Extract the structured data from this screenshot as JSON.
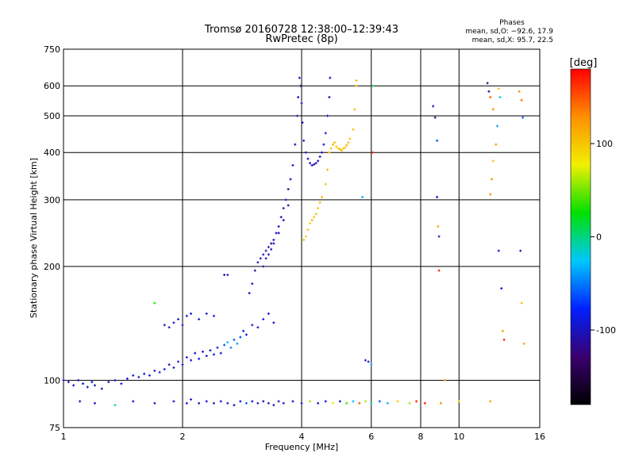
{
  "chart_data": {
    "type": "scatter",
    "title": "Tromsø 20160728 12:38:00–12:39:43",
    "subtitle": "RwPretec (8p)",
    "phase_info": {
      "heading": "Phases",
      "line_o": "mean, sd,O:  −92.6, 17.9",
      "line_x": "mean, sd,X:   95.7, 22.5"
    },
    "xlabel": "Frequency [MHz]",
    "ylabel": "Stationary phase Virtual Height [km]",
    "x_scale": "log",
    "y_scale": "log",
    "xlim": [
      1,
      16
    ],
    "ylim": [
      75,
      750
    ],
    "x_ticks": [
      1,
      2,
      4,
      6,
      8,
      10,
      16
    ],
    "y_ticks": [
      75,
      100,
      200,
      300,
      400,
      500,
      600,
      750
    ],
    "grid_x": [
      2,
      4,
      6,
      8,
      10
    ],
    "grid_y": [
      100,
      200,
      300,
      400,
      500,
      600
    ],
    "grid": true,
    "colorbar": {
      "label": "[deg]",
      "range": [
        -180,
        180
      ],
      "ticks": [
        100,
        0,
        -100
      ],
      "colormap": "rainbow",
      "stops": [
        "#000000",
        "#3a0070",
        "#0020ff",
        "#00c8ff",
        "#00e000",
        "#f0f000",
        "#ff9000",
        "#ff0000"
      ]
    },
    "series": [
      {
        "points": [
          [
            1.0,
            100,
            -95
          ],
          [
            1.03,
            99,
            -100
          ],
          [
            1.06,
            97,
            -90
          ],
          [
            1.09,
            100,
            -105
          ],
          [
            1.12,
            98,
            -95
          ],
          [
            1.15,
            96,
            -100
          ],
          [
            1.18,
            99,
            -88
          ],
          [
            1.2,
            97,
            -95
          ],
          [
            1.25,
            95,
            -110
          ],
          [
            1.3,
            99,
            -92
          ],
          [
            1.35,
            100,
            -100
          ],
          [
            1.4,
            98,
            -90
          ],
          [
            1.45,
            101,
            -95
          ],
          [
            1.5,
            103,
            -85
          ],
          [
            1.55,
            102,
            -100
          ],
          [
            1.6,
            104,
            -95
          ],
          [
            1.65,
            103,
            -90
          ],
          [
            1.7,
            106,
            -100
          ],
          [
            1.75,
            105,
            -95
          ],
          [
            1.8,
            107,
            -88
          ],
          [
            1.85,
            110,
            -95
          ],
          [
            1.9,
            108,
            -100
          ],
          [
            1.95,
            112,
            -92
          ],
          [
            2.0,
            110,
            -95
          ],
          [
            2.05,
            115,
            -90
          ],
          [
            2.1,
            113,
            -100
          ],
          [
            2.15,
            118,
            -95
          ],
          [
            2.2,
            114,
            -85
          ],
          [
            2.25,
            119,
            -90
          ],
          [
            2.3,
            116,
            -95
          ],
          [
            2.35,
            120,
            -100
          ],
          [
            2.4,
            117,
            -88
          ],
          [
            2.45,
            122,
            -95
          ],
          [
            2.5,
            118,
            -90
          ],
          [
            2.55,
            124,
            -60
          ],
          [
            2.6,
            126,
            -30
          ],
          [
            2.65,
            122,
            -50
          ],
          [
            2.7,
            128,
            -60
          ],
          [
            2.75,
            125,
            -40
          ],
          [
            2.8,
            130,
            -70
          ],
          [
            2.85,
            135,
            -80
          ],
          [
            2.9,
            132,
            -90
          ],
          [
            3.0,
            140,
            -95
          ],
          [
            3.1,
            138,
            -100
          ],
          [
            3.2,
            145,
            -90
          ],
          [
            3.3,
            150,
            -95
          ],
          [
            3.4,
            142,
            -100
          ],
          [
            1.8,
            140,
            -100
          ],
          [
            1.85,
            138,
            -95
          ],
          [
            1.9,
            142,
            -90
          ],
          [
            1.95,
            145,
            -100
          ],
          [
            2.0,
            140,
            -95
          ],
          [
            2.05,
            148,
            -100
          ],
          [
            2.1,
            150,
            -95
          ],
          [
            2.2,
            145,
            -90
          ],
          [
            2.3,
            150,
            -100
          ],
          [
            2.4,
            148,
            -95
          ],
          [
            1.7,
            160,
            30
          ],
          [
            2.55,
            190,
            -110
          ],
          [
            2.6,
            190,
            -100
          ]
        ]
      },
      {
        "points": [
          [
            2.95,
            170,
            -100
          ],
          [
            3.0,
            180,
            -95
          ],
          [
            3.05,
            195,
            -110
          ],
          [
            3.1,
            205,
            -100
          ],
          [
            3.15,
            210,
            -95
          ],
          [
            3.2,
            215,
            -105
          ],
          [
            3.25,
            220,
            -100
          ],
          [
            3.3,
            225,
            -95
          ],
          [
            3.35,
            230,
            -110
          ],
          [
            3.4,
            235,
            -100
          ],
          [
            3.45,
            245,
            -95
          ],
          [
            3.5,
            255,
            -100
          ],
          [
            3.55,
            270,
            -105
          ],
          [
            3.6,
            285,
            -100
          ],
          [
            3.65,
            300,
            -95
          ],
          [
            3.7,
            320,
            -110
          ],
          [
            3.75,
            340,
            -100
          ],
          [
            3.8,
            370,
            -95
          ],
          [
            3.85,
            420,
            -100
          ],
          [
            3.9,
            500,
            -105
          ],
          [
            3.92,
            560,
            -100
          ],
          [
            3.95,
            630,
            -95
          ],
          [
            3.98,
            600,
            -110
          ],
          [
            4.0,
            540,
            -100
          ],
          [
            4.02,
            480,
            -95
          ],
          [
            4.05,
            430,
            -100
          ],
          [
            4.1,
            400,
            -105
          ],
          [
            4.15,
            385,
            -100
          ],
          [
            4.2,
            375,
            -95
          ],
          [
            4.25,
            370,
            -100
          ],
          [
            4.3,
            372,
            -105
          ],
          [
            4.35,
            375,
            -100
          ],
          [
            4.4,
            380,
            -95
          ],
          [
            4.45,
            390,
            -100
          ],
          [
            4.5,
            400,
            -105
          ],
          [
            4.55,
            420,
            -100
          ],
          [
            4.6,
            450,
            -95
          ],
          [
            4.65,
            500,
            -100
          ],
          [
            4.7,
            560,
            -105
          ],
          [
            4.72,
            630,
            -100
          ],
          [
            3.2,
            200,
            -100
          ],
          [
            3.25,
            210,
            -95
          ],
          [
            3.3,
            215,
            -105
          ],
          [
            3.35,
            222,
            -100
          ],
          [
            3.4,
            230,
            -95
          ],
          [
            3.5,
            245,
            -100
          ],
          [
            3.6,
            265,
            -105
          ],
          [
            3.7,
            290,
            -100
          ]
        ]
      },
      {
        "points": [
          [
            4.05,
            235,
            110
          ],
          [
            4.1,
            240,
            100
          ],
          [
            4.15,
            250,
            105
          ],
          [
            4.2,
            260,
            95
          ],
          [
            4.25,
            265,
            110
          ],
          [
            4.3,
            270,
            100
          ],
          [
            4.35,
            275,
            105
          ],
          [
            4.4,
            285,
            100
          ],
          [
            4.45,
            295,
            110
          ],
          [
            4.5,
            305,
            105
          ],
          [
            4.6,
            330,
            100
          ],
          [
            4.65,
            360,
            110
          ],
          [
            4.7,
            400,
            105
          ],
          [
            4.75,
            410,
            100
          ],
          [
            4.8,
            420,
            110
          ],
          [
            4.85,
            425,
            105
          ],
          [
            4.9,
            415,
            100
          ],
          [
            4.95,
            410,
            95
          ],
          [
            5.0,
            408,
            110
          ],
          [
            5.05,
            405,
            105
          ],
          [
            5.1,
            410,
            100
          ],
          [
            5.15,
            412,
            95
          ],
          [
            5.2,
            418,
            110
          ],
          [
            5.25,
            425,
            105
          ],
          [
            5.3,
            435,
            100
          ],
          [
            5.4,
            460,
            110
          ],
          [
            5.45,
            520,
            105
          ],
          [
            5.5,
            600,
            100
          ],
          [
            5.5,
            620,
            110
          ]
        ]
      },
      {
        "points": [
          [
            1.1,
            88,
            -100
          ],
          [
            1.2,
            87,
            -95
          ],
          [
            1.35,
            86,
            -10
          ],
          [
            1.5,
            88,
            -100
          ],
          [
            1.7,
            87,
            -95
          ],
          [
            1.9,
            88,
            -100
          ],
          [
            2.05,
            87,
            -90
          ],
          [
            2.1,
            89,
            -95
          ],
          [
            2.2,
            87,
            -100
          ],
          [
            2.3,
            88,
            -95
          ],
          [
            2.4,
            87,
            -100
          ],
          [
            2.5,
            88,
            -90
          ],
          [
            2.6,
            87,
            -95
          ],
          [
            2.7,
            86,
            -100
          ],
          [
            2.8,
            88,
            -95
          ],
          [
            2.9,
            87,
            -60
          ],
          [
            3.0,
            88,
            -100
          ],
          [
            3.1,
            87,
            -95
          ],
          [
            3.2,
            88,
            -100
          ],
          [
            3.3,
            87,
            -95
          ],
          [
            3.4,
            86,
            -100
          ],
          [
            3.5,
            88,
            -90
          ],
          [
            3.6,
            87,
            -95
          ],
          [
            3.8,
            88,
            -100
          ],
          [
            4.0,
            87,
            -95
          ],
          [
            4.2,
            88,
            60
          ],
          [
            4.4,
            87,
            -100
          ],
          [
            4.6,
            88,
            -95
          ],
          [
            4.8,
            87,
            80
          ],
          [
            5.0,
            88,
            -100
          ],
          [
            5.2,
            87,
            40
          ],
          [
            5.4,
            88,
            -30
          ],
          [
            5.6,
            87,
            150
          ],
          [
            5.8,
            88,
            60
          ],
          [
            6.0,
            87,
            -20
          ],
          [
            6.3,
            88,
            -60
          ],
          [
            6.6,
            87,
            -30
          ],
          [
            7.0,
            88,
            100
          ],
          [
            7.5,
            87,
            60
          ],
          [
            7.8,
            88,
            170
          ],
          [
            8.2,
            87,
            170
          ],
          [
            9.0,
            87,
            130
          ],
          [
            10.0,
            88,
            90
          ],
          [
            12.0,
            88,
            120
          ]
        ]
      },
      {
        "points": [
          [
            5.8,
            113,
            -90
          ],
          [
            5.9,
            112,
            -95
          ],
          [
            6.0,
            110,
            -30
          ],
          [
            6.05,
            600,
            10
          ],
          [
            6.05,
            400,
            170
          ],
          [
            5.7,
            305,
            -30
          ],
          [
            8.6,
            530,
            -100
          ],
          [
            8.7,
            495,
            -110
          ],
          [
            8.8,
            430,
            -60
          ],
          [
            8.8,
            305,
            -100
          ],
          [
            8.85,
            255,
            120
          ],
          [
            8.9,
            240,
            -100
          ],
          [
            8.9,
            195,
            170
          ],
          [
            9.2,
            100,
            130
          ],
          [
            11.8,
            610,
            -120
          ],
          [
            11.9,
            580,
            -110
          ],
          [
            12.0,
            560,
            150
          ],
          [
            12.2,
            520,
            130
          ],
          [
            12.6,
            590,
            100
          ],
          [
            12.7,
            560,
            -20
          ],
          [
            12.5,
            470,
            -40
          ],
          [
            12.4,
            420,
            120
          ],
          [
            12.2,
            380,
            100
          ],
          [
            12.1,
            340,
            130
          ],
          [
            12.0,
            310,
            130
          ],
          [
            12.6,
            220,
            -100
          ],
          [
            12.8,
            175,
            -100
          ],
          [
            12.9,
            135,
            120
          ],
          [
            13.0,
            128,
            170
          ],
          [
            14.2,
            580,
            130
          ],
          [
            14.4,
            550,
            140
          ],
          [
            14.5,
            495,
            -60
          ],
          [
            14.3,
            220,
            -100
          ],
          [
            14.4,
            160,
            110
          ],
          [
            14.6,
            125,
            120
          ]
        ]
      }
    ]
  }
}
